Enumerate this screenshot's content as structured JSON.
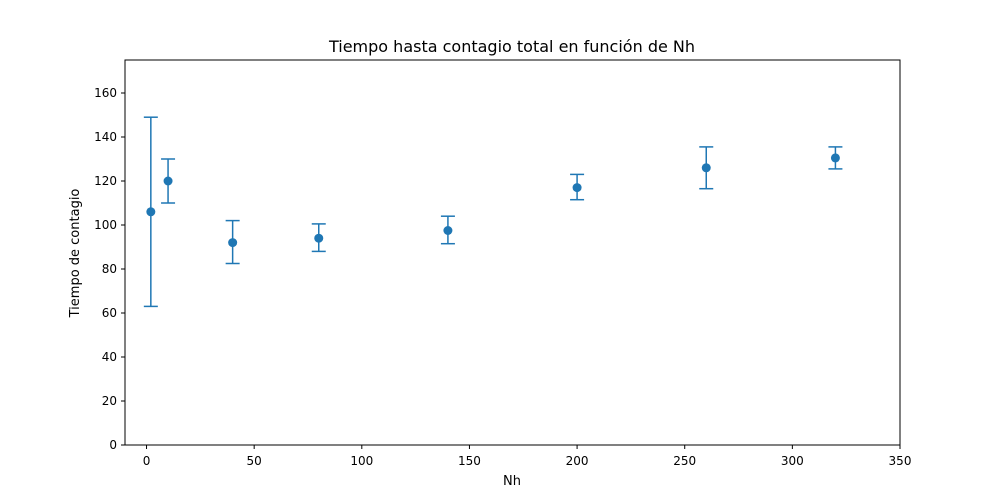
{
  "chart_data": {
    "type": "scatter",
    "title": "Tiempo hasta contagio total en función de Nh",
    "xlabel": "Nh",
    "ylabel": "Tiempo de contagio",
    "xlim": [
      -10,
      350
    ],
    "ylim": [
      0,
      175
    ],
    "xticks": [
      0,
      50,
      100,
      150,
      200,
      250,
      300,
      350
    ],
    "yticks": [
      0,
      20,
      40,
      60,
      80,
      100,
      120,
      140,
      160
    ],
    "grid": false,
    "color": "#1f77b4",
    "series": [
      {
        "x": [
          2,
          10,
          40,
          80,
          140,
          200,
          260,
          320
        ],
        "y": [
          106,
          120,
          92,
          94,
          97.5,
          117,
          126,
          130.5
        ],
        "yerr_low": [
          63,
          110,
          82.5,
          88,
          91.5,
          111.5,
          116.5,
          125.5
        ],
        "yerr_high": [
          149,
          130,
          102,
          100.5,
          104,
          123,
          135.5,
          135.5
        ]
      }
    ]
  }
}
